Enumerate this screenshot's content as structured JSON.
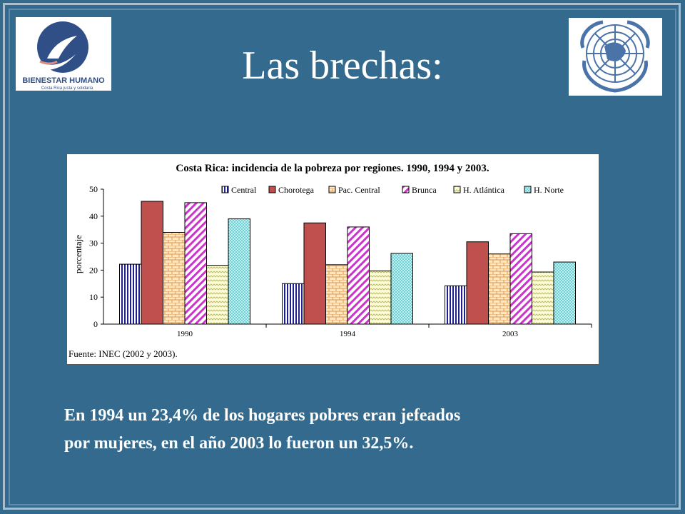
{
  "slide": {
    "title": "Las brechas:"
  },
  "logos": {
    "left": {
      "name": "BIENESTAR HUMANO",
      "tagline": "Costa Rica justa y solidaria"
    },
    "right": {
      "icon": "un-emblem-icon"
    }
  },
  "chart_data": {
    "type": "bar",
    "title": "Costa Rica: incidencia de la pobreza por regiones. 1990, 1994 y 2003.",
    "ylabel": "porcentaje",
    "xlabel": "",
    "ylim": [
      0,
      50
    ],
    "yticks": [
      0,
      10,
      20,
      30,
      40,
      50
    ],
    "categories": [
      "1990",
      "1994",
      "2003"
    ],
    "series": [
      {
        "name": "Central",
        "values": [
          22.2,
          15.0,
          14.2
        ],
        "color": "#1f1f8f",
        "pattern": "vertical-lines"
      },
      {
        "name": "Chorotega",
        "values": [
          45.5,
          37.5,
          30.5
        ],
        "color": "#c0504d",
        "pattern": "solid"
      },
      {
        "name": "Pac. Central",
        "values": [
          34.0,
          22.0,
          26.0
        ],
        "color": "#e8a55a",
        "pattern": "brick"
      },
      {
        "name": "Brunca",
        "values": [
          45.0,
          36.0,
          33.5
        ],
        "color": "#cc33cc",
        "pattern": "diagonal"
      },
      {
        "name": "H. Atlántica",
        "values": [
          21.8,
          19.7,
          19.3
        ],
        "color": "#d9d98a",
        "pattern": "zigzag"
      },
      {
        "name": "H. Norte",
        "values": [
          39.0,
          26.2,
          23.0
        ],
        "color": "#6fd3d3",
        "pattern": "dots"
      }
    ],
    "legend_position": "top",
    "grid": false,
    "source": "Fuente: INEC (2002 y 2003)."
  },
  "body": {
    "line1": "En 1994 un 23,4% de los hogares pobres eran jefeados",
    "line2": "por mujeres, en el año 2003 lo fueron un 32,5%."
  }
}
